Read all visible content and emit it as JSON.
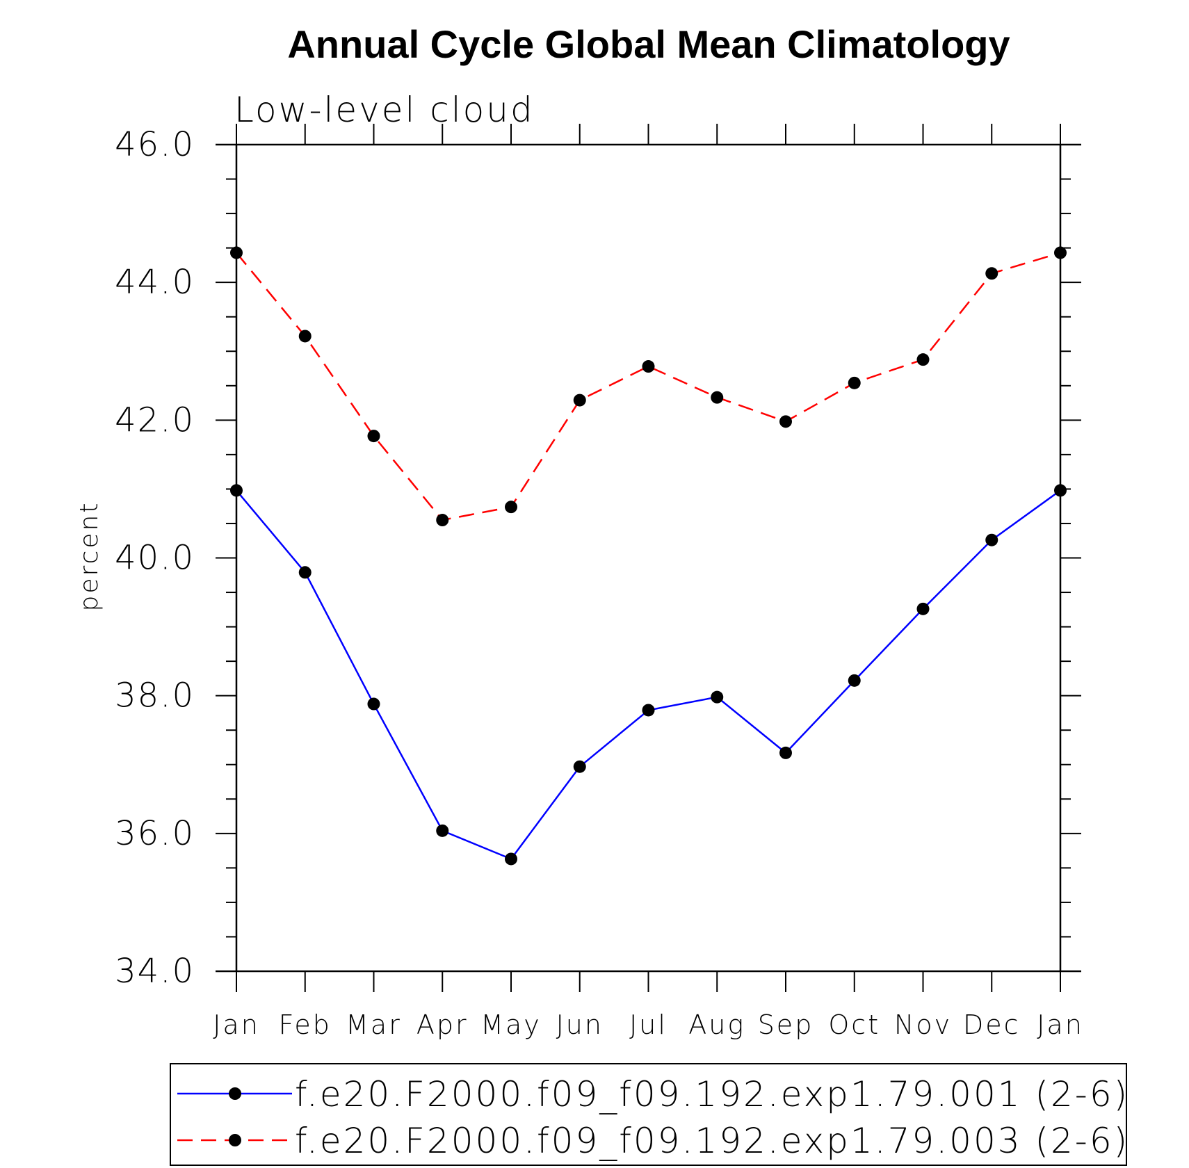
{
  "chart_data": {
    "type": "line",
    "title": "Annual Cycle Global Mean Climatology",
    "subtitle": "Low-level cloud",
    "xlabel": "",
    "ylabel": "percent",
    "categories": [
      "Jan",
      "Feb",
      "Mar",
      "Apr",
      "May",
      "Jun",
      "Jul",
      "Aug",
      "Sep",
      "Oct",
      "Nov",
      "Dec",
      "Jan"
    ],
    "ylim": [
      34.0,
      46.0
    ],
    "yticks": [
      "34.0",
      "36.0",
      "38.0",
      "40.0",
      "42.0",
      "44.0",
      "46.0"
    ],
    "grid": false,
    "legend_position": "bottom",
    "series": [
      {
        "name": "f.e20.F2000.f09_f09.192.exp1.79.001 (2-6)",
        "color": "#0000ff",
        "dash": "solid",
        "values": [
          40.98,
          39.79,
          37.88,
          36.04,
          35.63,
          36.97,
          37.79,
          37.98,
          37.17,
          38.22,
          39.26,
          40.26,
          40.98
        ]
      },
      {
        "name": "f.e20.F2000.f09_f09.192.exp1.79.003 (2-6)",
        "color": "#ff0000",
        "dash": "dashed",
        "values": [
          44.43,
          43.22,
          41.77,
          40.55,
          40.74,
          42.29,
          42.78,
          42.33,
          41.98,
          42.54,
          42.88,
          44.13,
          44.43
        ]
      }
    ]
  }
}
